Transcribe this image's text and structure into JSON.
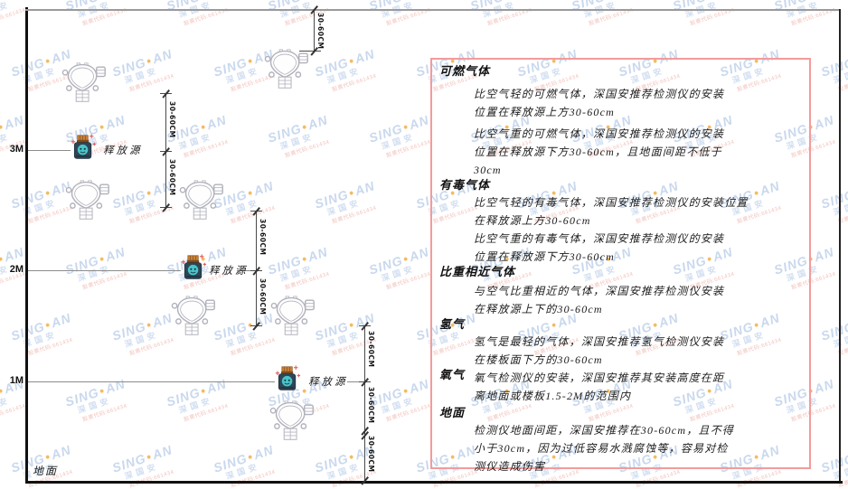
{
  "watermark": {
    "brand_left": "SING",
    "brand_right": "AN",
    "dot": "●",
    "line2": "深国安",
    "line3": "股票代码:661434"
  },
  "colors": {
    "panel_border": "#f29b9b",
    "source_body": "#2e4656",
    "source_cap": "#c98038",
    "source_face": "#49c5c9",
    "spark_red": "#e06060",
    "detector_line": "#b0b1bb",
    "watermark_blue": "#bccfe9",
    "watermark_orange": "#f2a93c",
    "watermark_red": "#efb3ab"
  },
  "diagram": {
    "dim_label": "30-60CM",
    "source_label": "释放源",
    "ground_label": "地面",
    "levels": [
      {
        "label": "3M"
      },
      {
        "label": "2M"
      },
      {
        "label": "1M"
      }
    ],
    "icons": {
      "detector": "gas-detector-icon",
      "source": "release-source-icon"
    }
  },
  "panel": {
    "sections": [
      {
        "heading": "可燃气体",
        "paragraphs": [
          "比空气轻的可燃气体，深国安推荐检测仪的安装\n位置在释放源上方30-60cm",
          "比空气重的可燃气体，深国安推荐检测仪的安装\n位置在释放源下方30-60cm，且地面间距不低于\n30cm"
        ]
      },
      {
        "heading": "有毒气体",
        "paragraphs": [
          "比空气轻的有毒气体，深国安推荐检测仪的安装位置\n在释放源上方30-60cm",
          "比空气重的有毒气体，深国安推荐检测仪的安装\n位置在释放源下方30-60cm"
        ]
      },
      {
        "heading": "比重相近气体",
        "paragraphs": [
          "与空气比重相近的气体，深国安推荐检测仪安装\n在释放源上下的30-60cm"
        ]
      },
      {
        "heading": "氢气",
        "paragraphs": [
          "氢气是最轻的气体，深国安推荐氢气检测仪安装\n在楼板面下方的30-60cm"
        ]
      },
      {
        "heading": "氧气",
        "paragraphs": [
          "氧气检测仪的安装，深国安推荐其安装高度在距\n离地面或楼板1.5-2M的范围内"
        ]
      },
      {
        "heading": "地面",
        "paragraphs": [
          "检测仪地面间距，深国安推荐在30-60cm，且不得\n小于30cm，因为过低容易水溅腐蚀等，容易对检\n测仪造成伤害"
        ]
      }
    ]
  }
}
